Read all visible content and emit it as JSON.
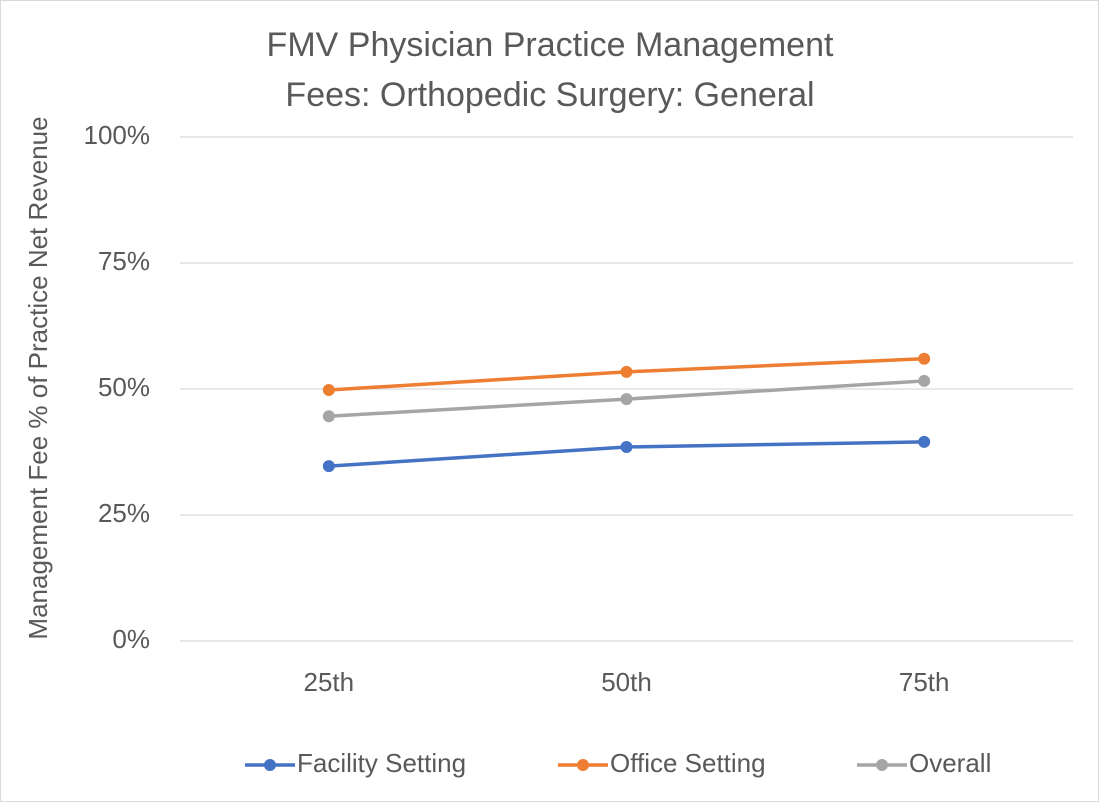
{
  "chart_data": {
    "type": "line",
    "title": "FMV Physician Practice Management Fees: Orthopedic Surgery: General",
    "y_label": "Management Fee % of Practice Net Revenue",
    "categories": [
      "25th",
      "50th",
      "75th"
    ],
    "series": [
      {
        "name": "Facility Setting",
        "color": "#4472c4",
        "values": [
          34.7,
          38.5,
          39.5
        ]
      },
      {
        "name": "Office Setting",
        "color": "#ed7d31",
        "values": [
          49.8,
          53.4,
          56.0
        ]
      },
      {
        "name": "Overall",
        "color": "#a5a5a5",
        "values": [
          44.6,
          48.0,
          51.6
        ]
      }
    ],
    "ylim": [
      0,
      100
    ],
    "yticks": [
      {
        "value": 0,
        "label": "0%"
      },
      {
        "value": 25,
        "label": "25%"
      },
      {
        "value": 50,
        "label": "50%"
      },
      {
        "value": 75,
        "label": "75%"
      },
      {
        "value": 100,
        "label": "100%"
      }
    ],
    "grid": true,
    "legend": "bottom"
  }
}
